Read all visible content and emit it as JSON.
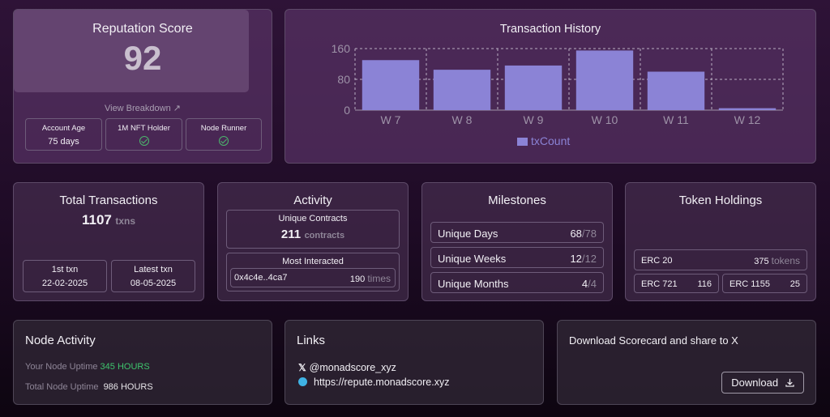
{
  "reputation": {
    "title": "Reputation Score",
    "score": "92",
    "breakdown_link": "View Breakdown ↗",
    "account_age_label": "Account Age",
    "account_age_value": "75 days",
    "nft_holder_label": "1M NFT Holder",
    "node_runner_label": "Node Runner"
  },
  "transactions": {
    "title": "Total Transactions",
    "count": "1107",
    "unit": "txns",
    "first_label": "1st txn",
    "first_value": "22-02-2025",
    "latest_label": "Latest txn",
    "latest_value": "08-05-2025"
  },
  "activity": {
    "title": "Activity",
    "unique_contracts_label": "Unique Contracts",
    "unique_contracts_value": "211",
    "unique_contracts_unit": "contracts",
    "most_interacted_label": "Most Interacted",
    "most_interacted_address": "0x4c4e..4ca7",
    "most_interacted_count": "190",
    "most_interacted_unit": "times"
  },
  "milestones": {
    "title": "Milestones",
    "items": [
      {
        "label": "Unique Days",
        "value": "68",
        "total": "/78"
      },
      {
        "label": "Unique Weeks",
        "value": "12",
        "total": "/12"
      },
      {
        "label": "Unique Months",
        "value": "4",
        "total": "/4"
      }
    ]
  },
  "tokens": {
    "title": "Token Holdings",
    "erc20_label": "ERC 20",
    "erc20_value": "375",
    "erc20_unit": "tokens",
    "erc721_label": "ERC 721",
    "erc721_value": "116",
    "erc1155_label": "ERC 1155",
    "erc1155_value": "25"
  },
  "node_activity": {
    "title": "Node Activity",
    "your_label": "Your Node Uptime",
    "your_value": "345 HOURS",
    "total_label": "Total Node Uptime",
    "total_value": "986 HOURS"
  },
  "links": {
    "title": "Links",
    "x_handle": "@monadscore_xyz",
    "website": "https://repute.monadscore.xyz"
  },
  "download": {
    "text": "Download Scorecard and share to X",
    "button_label": "Download"
  },
  "colors": {
    "bar": "#8b83d6",
    "positive": "#3ec46d"
  },
  "chart_data": {
    "type": "bar",
    "title": "Transaction History",
    "categories": [
      "W 7",
      "W 8",
      "W 9",
      "W 10",
      "W 11",
      "W 12"
    ],
    "series": [
      {
        "name": "txCount",
        "values": [
          130,
          105,
          116,
          155,
          100,
          5
        ]
      }
    ],
    "ylim": [
      0,
      160
    ],
    "yticks": [
      0,
      80,
      160
    ],
    "grid": true,
    "legend": "bottom"
  }
}
